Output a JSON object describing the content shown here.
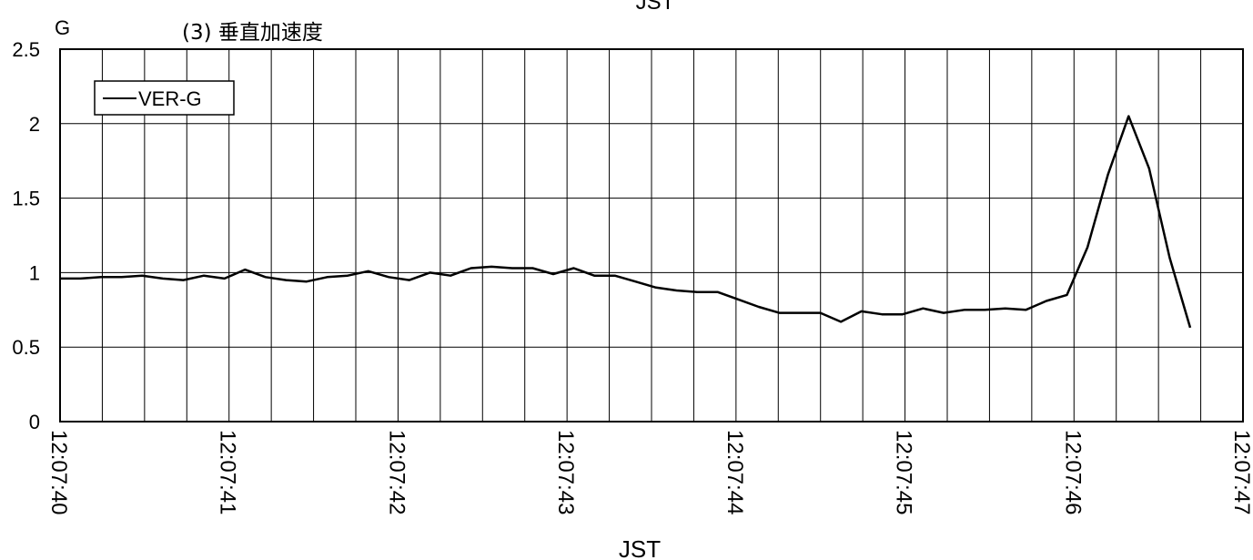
{
  "top_label": "JST",
  "chart_data": {
    "type": "line",
    "title": "(3) 垂直加速度",
    "ylabel": "G",
    "xlabel": "JST",
    "ylim": [
      0,
      2.5
    ],
    "y_ticks": [
      "0",
      "0.5",
      "1",
      "1.5",
      "2",
      "2.5"
    ],
    "x_ticks": [
      "12:07:40",
      "12:07:41",
      "12:07:42",
      "12:07:43",
      "12:07:44",
      "12:07:45",
      "12:07:46",
      "12:07:47"
    ],
    "grid": true,
    "legend_position": "top-left",
    "series": [
      {
        "name": "VER-G",
        "color": "#000000",
        "values": [
          0.96,
          0.96,
          0.97,
          0.97,
          0.98,
          0.96,
          0.95,
          0.98,
          0.96,
          1.02,
          0.97,
          0.95,
          0.94,
          0.97,
          0.98,
          1.01,
          0.97,
          0.95,
          1.0,
          0.98,
          1.03,
          1.04,
          1.03,
          1.03,
          0.99,
          1.03,
          0.98,
          0.98,
          0.94,
          0.9,
          0.88,
          0.87,
          0.87,
          0.82,
          0.77,
          0.73,
          0.73,
          0.73,
          0.67,
          0.74,
          0.72,
          0.72,
          0.76,
          0.73,
          0.75,
          0.75,
          0.76,
          0.75,
          0.81,
          0.85,
          1.17,
          1.66,
          2.05,
          1.7,
          1.1,
          0.63
        ]
      }
    ]
  }
}
